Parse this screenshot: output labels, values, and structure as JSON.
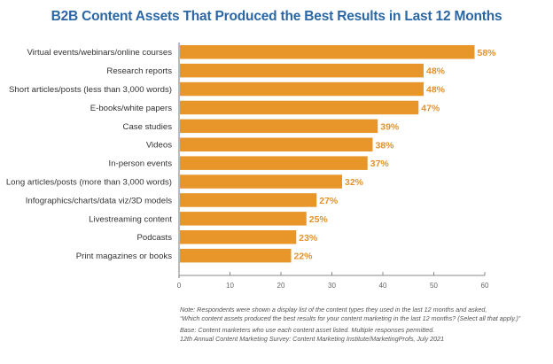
{
  "chart_data": {
    "type": "bar",
    "orientation": "horizontal",
    "title": "B2B Content Assets That Produced the Best Results in Last 12 Months",
    "categories": [
      "Virtual events/webinars/online courses",
      "Research reports",
      "Short articles/posts (less than 3,000 words)",
      "E-books/white papers",
      "Case studies",
      "Videos",
      "In-person events",
      "Long articles/posts (more than 3,000 words)",
      "Infographics/charts/data viz/3D models",
      "Livestreaming content",
      "Podcasts",
      "Print magazines or books"
    ],
    "values": [
      58,
      48,
      48,
      47,
      39,
      38,
      37,
      32,
      27,
      25,
      23,
      22
    ],
    "value_labels": [
      "58%",
      "48%",
      "48%",
      "47%",
      "39%",
      "38%",
      "37%",
      "32%",
      "27%",
      "25%",
      "23%",
      "22%"
    ],
    "xlabel": "",
    "ylabel": "",
    "xlim": [
      0,
      60
    ],
    "xticks": [
      0,
      10,
      20,
      30,
      40,
      50,
      60
    ],
    "grid": false,
    "legend": "none",
    "colors": {
      "bar": "#e8952a",
      "value_label": "#e5922a",
      "title": "#2b67a5"
    }
  },
  "notes": {
    "note_line1": "Note: Respondents were shown a display list of the content types they used in the last 12 months and asked,",
    "note_line2": "“Which content assets produced the best results for your content marketing in the last 12 months? (Select all that apply.)”",
    "base_line1": "Base: Content marketers who use each content asset listed. Multiple responses permitted.",
    "base_line2": "12th Annual Content Marketing Survey: Content Marketing Institute/MarketingProfs, July 2021"
  }
}
